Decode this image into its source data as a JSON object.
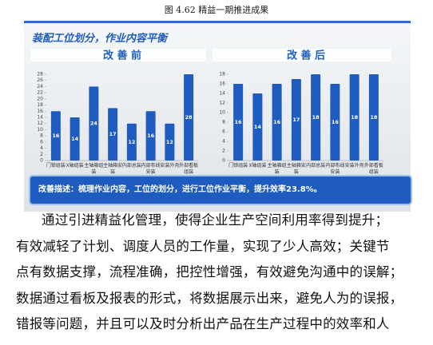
{
  "caption": "图 4.62 精益一期推进成果",
  "slide": {
    "title": "装配工位划分，作业内容平衡",
    "charts": [
      {
        "type": "bar",
        "title": "改 善 前",
        "categories": [
          "门锁组装",
          "X轴组装",
          "主轴箱组装",
          "主轴箱安装",
          "内部总装",
          "内部布线安装",
          "安装外壳",
          "外部看板组装"
        ],
        "values": [
          16,
          14,
          24,
          17,
          12,
          16,
          12,
          28
        ],
        "ylim": [
          0,
          28
        ],
        "yticks": [
          0,
          2,
          4,
          6,
          8,
          10,
          12,
          14,
          16,
          18,
          20,
          22,
          24,
          26,
          28
        ],
        "color": "#1f5cc0"
      },
      {
        "type": "bar",
        "title": "改 善 后",
        "categories": [
          "门锁组装",
          "X轴组装",
          "主轴箱组装",
          "主轴箱安装",
          "内部总装",
          "内部布线安装",
          "安装外壳",
          "外部看板组装"
        ],
        "values": [
          16,
          14,
          16,
          17,
          18,
          16,
          18,
          18
        ],
        "ylim": [
          0,
          18
        ],
        "yticks": [
          0,
          2,
          4,
          6,
          8,
          10,
          12,
          14,
          16,
          18
        ],
        "color": "#1f5cc0"
      }
    ],
    "description": "改善描述：梳理作业内容，工位的划分，进行工位作业平衡，提升效率23.8%。"
  },
  "body": {
    "lines": [
      "通过引进精益化管理，使得企业生产空间利用率得到提升；",
      "有效减轻了计划、调度人员的工作量，实现了少人高效；关键节",
      "点有数据支撑，流程准确，把控性增强，有效避免沟通中的误解；",
      "数据通过看板及报表的形式，将数据展示出来，避免人为的误报，",
      "错报等问题，并且可以及时分析出产品在生产过程中的效率和人"
    ]
  }
}
